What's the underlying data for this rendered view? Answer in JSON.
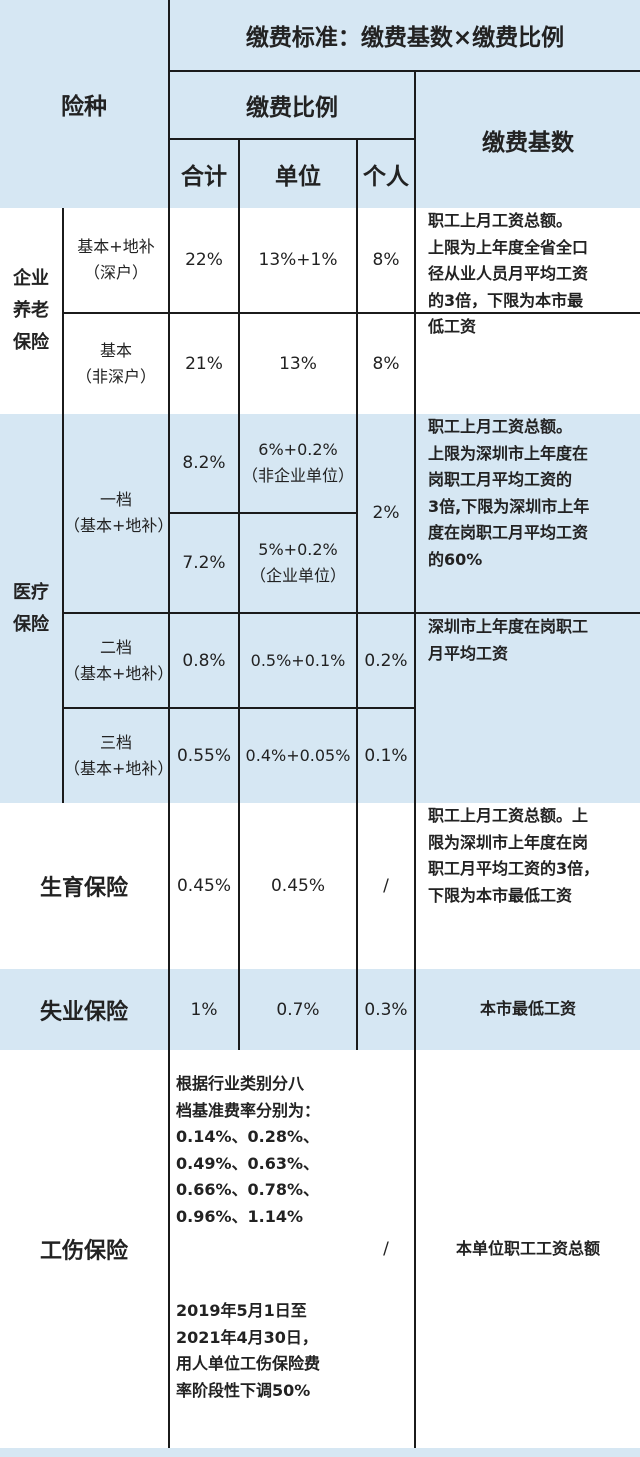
{
  "header": {
    "insurance_type": "险种",
    "formula": "缴费标准：缴费基数×缴费比例",
    "ratio": "缴费比例",
    "base": "缴费基数",
    "total": "合计",
    "employer": "单位",
    "individual": "个人"
  },
  "pension": {
    "name_lines": [
      "企业",
      "养老",
      "保险"
    ],
    "rows": [
      {
        "sub_lines": [
          "基本+地补",
          "（深户）"
        ],
        "total": "22%",
        "employer": "13%+1%",
        "individual": "8%"
      },
      {
        "sub_lines": [
          "基本",
          "（非深户）"
        ],
        "total": "21%",
        "employer": "13%",
        "individual": "8%"
      }
    ],
    "base_lines": [
      "职工上月工资总额。",
      "上限为上年度全省全口",
      "径从业人员月平均工资",
      "的3倍，下限为本市最",
      "低工资"
    ]
  },
  "medical": {
    "name_lines": [
      "医疗",
      "保险"
    ],
    "tier1": {
      "sub_lines": [
        "一档",
        "（基本+地补）"
      ],
      "rows": [
        {
          "total": "8.2%",
          "employer_lines": [
            "6%+0.2%",
            "（非企业单位）"
          ]
        },
        {
          "total": "7.2%",
          "employer_lines": [
            "5%+0.2%",
            "（企业单位）"
          ]
        }
      ],
      "individual": "2%",
      "base_lines": [
        "职工上月工资总额。",
        "上限为深圳市上年度在",
        "岗职工月平均工资的",
        "3倍,下限为深圳市上年",
        "度在岗职工月平均工资",
        "的60%"
      ]
    },
    "tier2": {
      "sub_lines": [
        "二档",
        "（基本+地补）"
      ],
      "total": "0.8%",
      "employer": "0.5%+0.1%",
      "individual": "0.2%"
    },
    "tier3": {
      "sub_lines": [
        "三档",
        "（基本+地补）"
      ],
      "total": "0.55%",
      "employer": "0.4%+0.05%",
      "individual": "0.1%"
    },
    "tier23_base_lines": [
      "深圳市上年度在岗职工",
      "月平均工资"
    ]
  },
  "maternity": {
    "name": "生育保险",
    "total": "0.45%",
    "employer": "0.45%",
    "individual": "/",
    "base_lines": [
      "职工上月工资总额。上",
      "限为深圳市上年度在岗",
      "职工月平均工资的3倍，",
      "下限为本市最低工资"
    ]
  },
  "unemployment": {
    "name": "失业保险",
    "total": "1%",
    "employer": "0.7%",
    "individual": "0.3%",
    "base": "本市最低工资"
  },
  "injury": {
    "name": "工伤保险",
    "rate_lines": [
      "根据行业类别分八",
      "档基准费率分别为：",
      "0.14%、0.28%、",
      "0.49%、0.63%、",
      "0.66%、0.78%、",
      "0.96%、1.14%"
    ],
    "note_lines": [
      "2019年5月1日至",
      "2021年4月30日，",
      "用人单位工伤保险费",
      "率阶段性下调50%"
    ],
    "individual": "/",
    "base": "本单位职工工资总额"
  }
}
